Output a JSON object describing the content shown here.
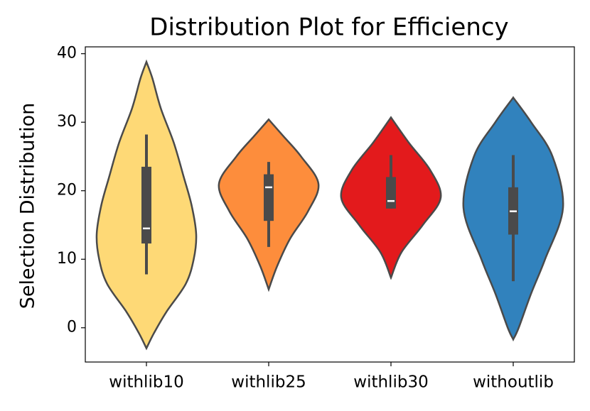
{
  "chart_data": {
    "type": "violin",
    "title": "Distribution Plot for Efficiency",
    "y_label": "Selection Distribution",
    "ylim": [
      -5,
      41
    ],
    "yticks": [
      0,
      10,
      20,
      30,
      40
    ],
    "categories": [
      "withlib10",
      "withlib25",
      "withlib30",
      "withoutlib"
    ],
    "series": [
      {
        "name": "withlib10",
        "color": "#fed976",
        "whisker_low": 7.8,
        "q1": 12.3,
        "median": 14.5,
        "q3": 23.5,
        "whisker_high": 28.2,
        "density_y": [
          -3,
          -0.8,
          2.3,
          6.4,
          10,
          13.6,
          17.8,
          22,
          27,
          32,
          36.4,
          38.8
        ],
        "density_width": [
          0,
          0.15,
          0.4,
          0.79,
          0.95,
          1,
          0.91,
          0.75,
          0.55,
          0.29,
          0.12,
          0
        ]
      },
      {
        "name": "withlib25",
        "color": "#fd8d3c",
        "whisker_low": 11.8,
        "q1": 15.6,
        "median": 20.5,
        "q3": 22.4,
        "whisker_high": 24.2,
        "density_y": [
          5.6,
          9,
          13,
          17,
          21,
          25,
          28,
          30.4
        ],
        "density_width": [
          0,
          0.17,
          0.43,
          0.79,
          1,
          0.65,
          0.29,
          0
        ]
      },
      {
        "name": "withlib30",
        "color": "#e31a1c",
        "whisker_low": 17.4,
        "q1": 17.4,
        "median": 18.5,
        "q3": 22.0,
        "whisker_high": 25.2,
        "density_y": [
          7.3,
          11,
          15,
          19,
          23,
          27,
          30.7
        ],
        "density_width": [
          0,
          0.21,
          0.64,
          1,
          0.79,
          0.36,
          0
        ]
      },
      {
        "name": "withoutlib",
        "color": "#3182bd",
        "whisker_low": 6.8,
        "q1": 13.6,
        "median": 17.0,
        "q3": 20.5,
        "whisker_high": 25.2,
        "density_y": [
          -1.7,
          0,
          5,
          10,
          17.5,
          25,
          30,
          33.6
        ],
        "density_width": [
          0,
          0.11,
          0.36,
          0.64,
          1,
          0.79,
          0.36,
          0
        ]
      }
    ]
  }
}
